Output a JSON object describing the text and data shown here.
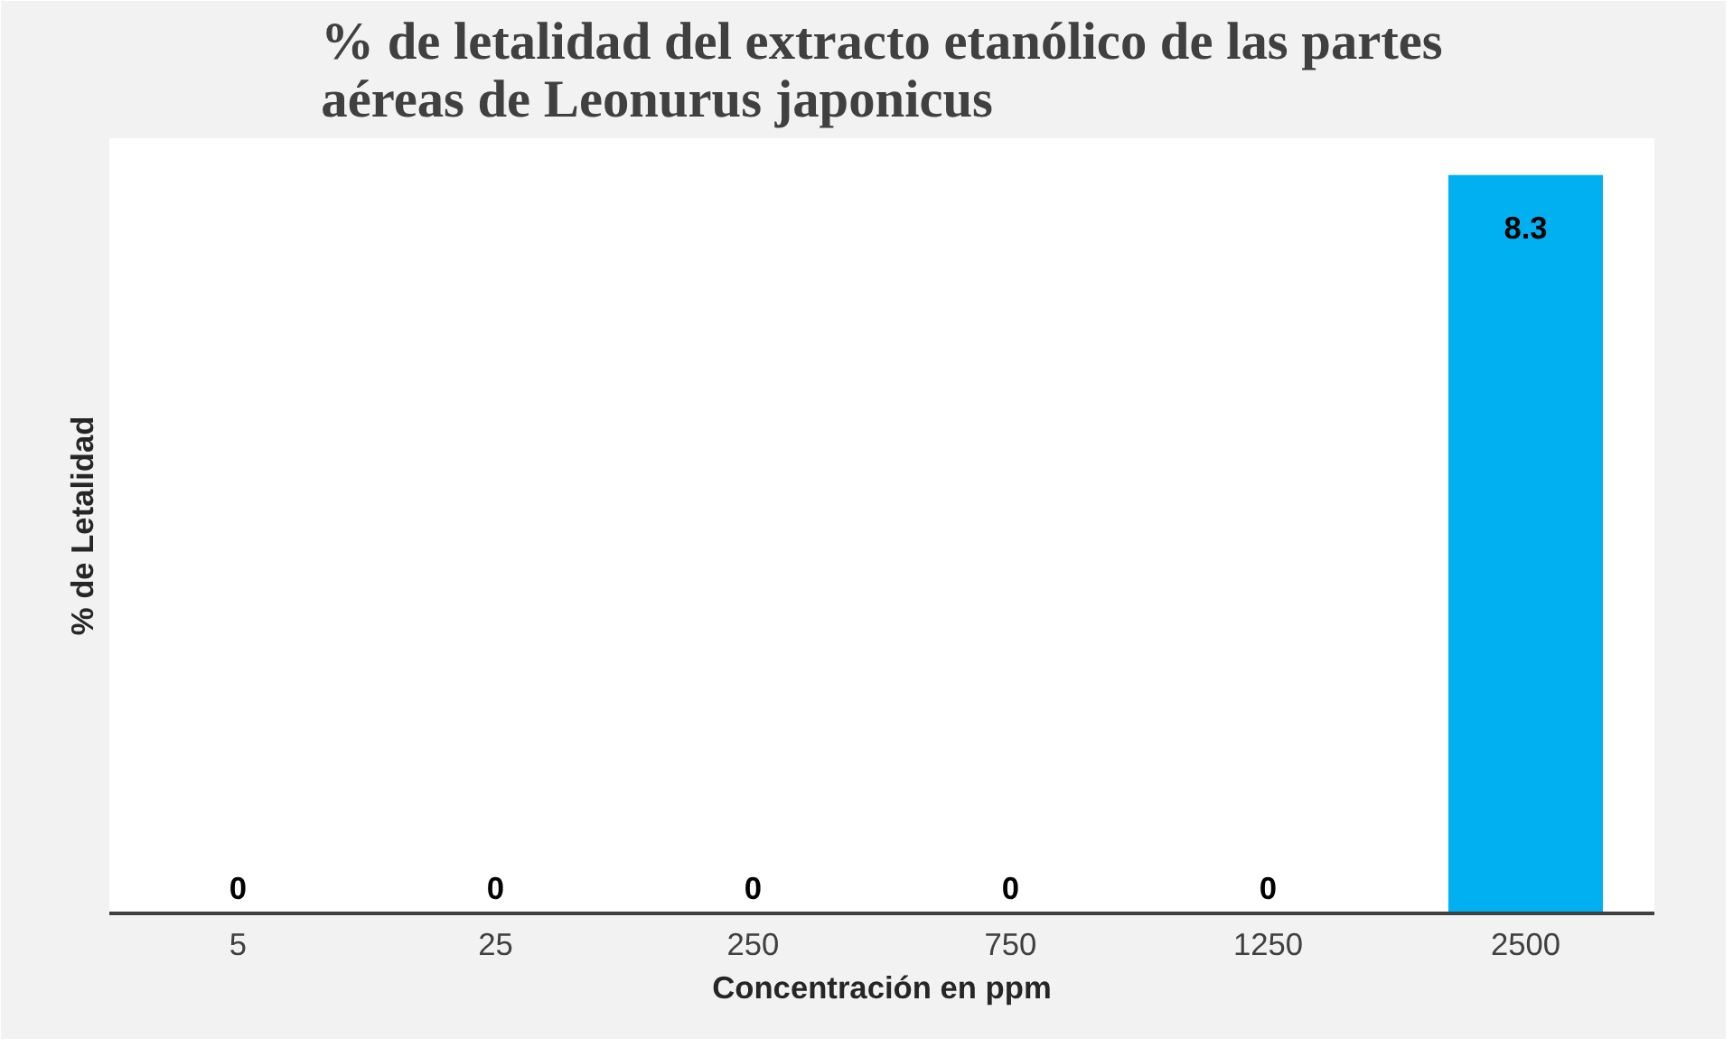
{
  "chart_data": {
    "type": "bar",
    "title": "% de letalidad del extracto etanólico de las partes aéreas de Leonurus japonicus",
    "xlabel": "Concentración en ppm",
    "ylabel": "% de Letalidad",
    "categories": [
      "5",
      "25",
      "250",
      "750",
      "1250",
      "2500"
    ],
    "values": [
      0,
      0,
      0,
      0,
      0,
      8.3
    ],
    "color": "#00b0f0",
    "data_labels": true,
    "grid": false
  }
}
